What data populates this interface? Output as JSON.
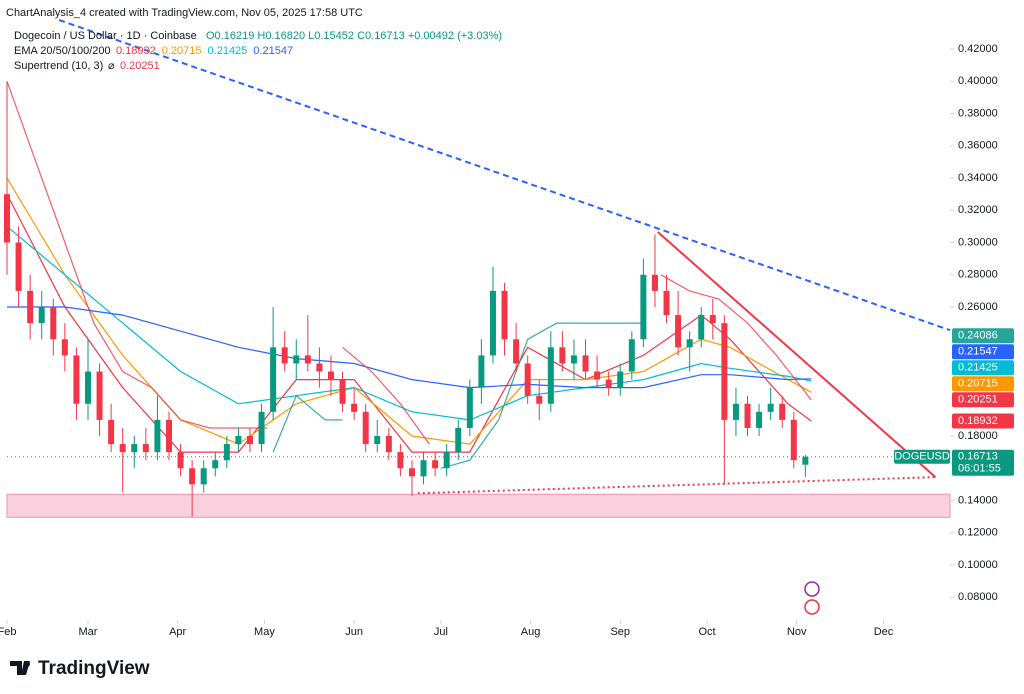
{
  "chart_data": {
    "type": "candlestick",
    "watermark": "ChartAnalysis_4 created with TradingView.com, Nov 05, 2025 17:58 UTC",
    "symbol": "Dogecoin / US Dollar · 1D · Coinbase",
    "ohlc_text": "O0.16219 H0.16820 L0.15452 C0.16713 +0.00492 (+3.03%)",
    "ema_label": "EMA 20/50/100/200",
    "supertrend_label": "Supertrend (10, 3)",
    "supertrend_symbol": "⌀",
    "supertrend_value_label": "0.20251",
    "brand": "TradingView",
    "xlim": [
      0,
      326
    ],
    "ylim": [
      0.069,
      0.438
    ],
    "xticks": [
      {
        "value": 0,
        "label": "Feb"
      },
      {
        "value": 28,
        "label": "Mar"
      },
      {
        "value": 59,
        "label": "Apr"
      },
      {
        "value": 89,
        "label": "May"
      },
      {
        "value": 120,
        "label": "Jun"
      },
      {
        "value": 150,
        "label": "Jul"
      },
      {
        "value": 181,
        "label": "Aug"
      },
      {
        "value": 212,
        "label": "Sep"
      },
      {
        "value": 242,
        "label": "Oct"
      },
      {
        "value": 273,
        "label": "Nov"
      },
      {
        "value": 303,
        "label": "Dec"
      }
    ],
    "yticks": [
      {
        "value": 0.42,
        "label": "0.42000"
      },
      {
        "value": 0.4,
        "label": "0.40000"
      },
      {
        "value": 0.38,
        "label": "0.38000"
      },
      {
        "value": 0.36,
        "label": "0.36000"
      },
      {
        "value": 0.34,
        "label": "0.34000"
      },
      {
        "value": 0.32,
        "label": "0.32000"
      },
      {
        "value": 0.3,
        "label": "0.30000"
      },
      {
        "value": 0.28,
        "label": "0.28000"
      },
      {
        "value": 0.26,
        "label": "0.26000"
      },
      {
        "value": 0.18,
        "label": "0.18000"
      },
      {
        "value": 0.14,
        "label": "0.14000"
      },
      {
        "value": 0.12,
        "label": "0.12000"
      },
      {
        "value": 0.1,
        "label": "0.10000"
      },
      {
        "value": 0.08,
        "label": "0.08000"
      }
    ],
    "candles": {
      "up_color": "#089981",
      "down_color": "#f23645",
      "x": [
        0,
        4,
        8,
        12,
        16,
        20,
        24,
        28,
        32,
        36,
        40,
        44,
        48,
        52,
        56,
        60,
        64,
        68,
        72,
        76,
        80,
        84,
        88,
        92,
        96,
        100,
        104,
        108,
        112,
        116,
        120,
        124,
        128,
        132,
        136,
        140,
        144,
        148,
        152,
        156,
        160,
        164,
        168,
        172,
        176,
        180,
        184,
        188,
        192,
        196,
        200,
        204,
        208,
        212,
        216,
        220,
        224,
        228,
        232,
        236,
        240,
        244,
        248,
        252,
        256,
        260,
        264,
        268,
        272,
        276
      ],
      "open": [
        0.33,
        0.3,
        0.27,
        0.25,
        0.26,
        0.24,
        0.23,
        0.2,
        0.22,
        0.19,
        0.175,
        0.17,
        0.175,
        0.17,
        0.19,
        0.17,
        0.16,
        0.15,
        0.16,
        0.165,
        0.175,
        0.18,
        0.175,
        0.195,
        0.235,
        0.225,
        0.23,
        0.225,
        0.22,
        0.215,
        0.2,
        0.195,
        0.175,
        0.18,
        0.17,
        0.16,
        0.155,
        0.165,
        0.16,
        0.17,
        0.185,
        0.21,
        0.23,
        0.27,
        0.24,
        0.225,
        0.205,
        0.2,
        0.235,
        0.225,
        0.23,
        0.22,
        0.215,
        0.21,
        0.22,
        0.24,
        0.28,
        0.27,
        0.255,
        0.235,
        0.24,
        0.255,
        0.25,
        0.19,
        0.2,
        0.185,
        0.195,
        0.2,
        0.19,
        0.16219
      ],
      "high": [
        0.4,
        0.31,
        0.28,
        0.27,
        0.265,
        0.25,
        0.235,
        0.24,
        0.225,
        0.2,
        0.185,
        0.18,
        0.185,
        0.205,
        0.195,
        0.175,
        0.165,
        0.165,
        0.17,
        0.18,
        0.185,
        0.185,
        0.2,
        0.26,
        0.245,
        0.24,
        0.255,
        0.235,
        0.23,
        0.22,
        0.21,
        0.2,
        0.19,
        0.185,
        0.175,
        0.165,
        0.17,
        0.17,
        0.175,
        0.19,
        0.215,
        0.24,
        0.285,
        0.275,
        0.25,
        0.23,
        0.215,
        0.245,
        0.245,
        0.24,
        0.24,
        0.23,
        0.22,
        0.225,
        0.245,
        0.29,
        0.305,
        0.28,
        0.27,
        0.245,
        0.26,
        0.265,
        0.255,
        0.21,
        0.205,
        0.2,
        0.21,
        0.205,
        0.195,
        0.1682
      ],
      "low": [
        0.28,
        0.26,
        0.24,
        0.24,
        0.23,
        0.22,
        0.19,
        0.19,
        0.18,
        0.17,
        0.145,
        0.16,
        0.165,
        0.165,
        0.165,
        0.155,
        0.13,
        0.145,
        0.155,
        0.16,
        0.17,
        0.17,
        0.17,
        0.19,
        0.22,
        0.215,
        0.22,
        0.21,
        0.205,
        0.195,
        0.19,
        0.17,
        0.17,
        0.165,
        0.155,
        0.143,
        0.15,
        0.155,
        0.155,
        0.165,
        0.18,
        0.2,
        0.225,
        0.23,
        0.22,
        0.2,
        0.19,
        0.195,
        0.22,
        0.215,
        0.215,
        0.21,
        0.205,
        0.205,
        0.215,
        0.235,
        0.26,
        0.25,
        0.23,
        0.22,
        0.235,
        0.24,
        0.15,
        0.18,
        0.18,
        0.18,
        0.19,
        0.185,
        0.16,
        0.15452
      ],
      "close": [
        0.3,
        0.27,
        0.25,
        0.26,
        0.24,
        0.23,
        0.2,
        0.22,
        0.19,
        0.175,
        0.17,
        0.175,
        0.17,
        0.19,
        0.17,
        0.16,
        0.15,
        0.16,
        0.165,
        0.175,
        0.18,
        0.175,
        0.195,
        0.235,
        0.225,
        0.23,
        0.225,
        0.22,
        0.215,
        0.2,
        0.195,
        0.175,
        0.18,
        0.17,
        0.16,
        0.155,
        0.165,
        0.16,
        0.17,
        0.185,
        0.21,
        0.23,
        0.27,
        0.24,
        0.225,
        0.205,
        0.2,
        0.235,
        0.225,
        0.23,
        0.22,
        0.215,
        0.21,
        0.22,
        0.24,
        0.28,
        0.27,
        0.255,
        0.235,
        0.24,
        0.255,
        0.25,
        0.19,
        0.2,
        0.185,
        0.195,
        0.2,
        0.19,
        0.165,
        0.16713
      ]
    },
    "ema_x": [
      0,
      20,
      40,
      60,
      80,
      100,
      120,
      140,
      160,
      180,
      200,
      220,
      240,
      250,
      270,
      278
    ],
    "series": [
      {
        "color": "#f23645",
        "value_label": "0.18932",
        "values": [
          0.33,
          0.26,
          0.21,
          0.17,
          0.17,
          0.215,
          0.215,
          0.17,
          0.17,
          0.235,
          0.215,
          0.23,
          0.255,
          0.24,
          0.2,
          0.18932
        ]
      },
      {
        "color": "#ff9800",
        "value_label": "0.20715",
        "values": [
          0.34,
          0.28,
          0.23,
          0.19,
          0.175,
          0.2,
          0.21,
          0.18,
          0.175,
          0.215,
          0.215,
          0.22,
          0.24,
          0.235,
          0.215,
          0.20715
        ]
      },
      {
        "color": "#00bcd4",
        "value_label": "0.21425",
        "values": [
          0.31,
          0.28,
          0.25,
          0.22,
          0.2,
          0.205,
          0.21,
          0.195,
          0.19,
          0.205,
          0.21,
          0.215,
          0.225,
          0.222,
          0.217,
          0.21425
        ]
      },
      {
        "color": "#2962ff",
        "value_label": "0.21547",
        "values": [
          0.26,
          0.26,
          0.255,
          0.245,
          0.235,
          0.228,
          0.225,
          0.215,
          0.21,
          0.212,
          0.21,
          0.21,
          0.218,
          0.218,
          0.215,
          0.21547
        ]
      }
    ],
    "supertrend": [
      {
        "color": "#f23645",
        "x": [
          0,
          10,
          20,
          30,
          40,
          50,
          60,
          70,
          80,
          90
        ],
        "values": [
          0.4,
          0.35,
          0.3,
          0.25,
          0.22,
          0.21,
          0.19,
          0.185,
          0.185,
          0.185
        ]
      },
      {
        "color": "#089981",
        "x": [
          92,
          100,
          110,
          116
        ],
        "values": [
          0.17,
          0.205,
          0.19,
          0.19
        ]
      },
      {
        "color": "#f23645",
        "x": [
          116,
          126,
          136,
          146
        ],
        "values": [
          0.235,
          0.22,
          0.2,
          0.175
        ]
      },
      {
        "color": "#089981",
        "x": [
          150,
          160,
          170,
          180,
          190,
          200,
          210,
          220
        ],
        "values": [
          0.16,
          0.165,
          0.19,
          0.24,
          0.25,
          0.25,
          0.25,
          0.25
        ]
      },
      {
        "color": "#f23645",
        "x": [
          226,
          236,
          246,
          256,
          266,
          278
        ],
        "values": [
          0.28,
          0.27,
          0.265,
          0.25,
          0.23,
          0.20251
        ]
      }
    ],
    "trendlines": [
      {
        "style": "dashed",
        "color": "#2962ff",
        "x": [
          18,
          326
        ],
        "values": [
          0.438,
          0.2456
        ]
      },
      {
        "style": "solid",
        "color": "#f23645",
        "x": [
          225,
          321
        ],
        "values": [
          0.3065,
          0.1545
        ]
      },
      {
        "style": "dotted",
        "color": "#f23645",
        "x": [
          142,
          321
        ],
        "values": [
          0.1445,
          0.1545
        ]
      }
    ],
    "zone": {
      "color": "#f8bbd0",
      "values": [
        0.1296,
        0.1439
      ]
    },
    "last_price": {
      "value": 0.16713,
      "label": "0.16713",
      "symbol": "DOGEUSD",
      "countdown": "06:01:55",
      "color": "#089981"
    },
    "price_tags": [
      {
        "value": 0.24086,
        "label": "0.24086",
        "color": "#26a69a"
      },
      {
        "value": 0.21547,
        "label": "0.21547",
        "color": "#2962ff"
      },
      {
        "value": 0.21425,
        "label": "0.21425",
        "color": "#00bcd4"
      },
      {
        "value": 0.20715,
        "label": "0.20715",
        "color": "#ff9800"
      },
      {
        "value": 0.20251,
        "label": "0.20251",
        "color": "#f23645"
      },
      {
        "value": 0.18932,
        "label": "0.18932",
        "color": "#f23645"
      }
    ]
  }
}
